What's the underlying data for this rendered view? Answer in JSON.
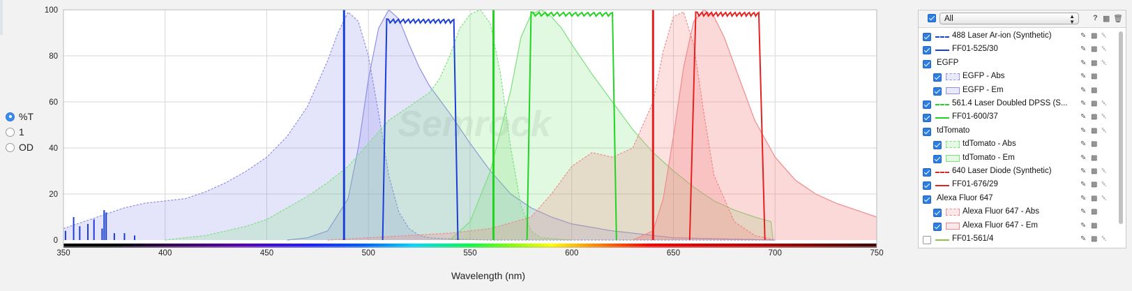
{
  "y_mode": {
    "options": [
      {
        "label": "%T",
        "selected": true
      },
      {
        "label": "1",
        "selected": false
      },
      {
        "label": "OD",
        "selected": false
      }
    ]
  },
  "panel": {
    "filter_select": "All",
    "help_icon": "?",
    "items": [
      {
        "label": "488 Laser Ar-ion (Synthetic)",
        "indent": 0,
        "checked": true,
        "swatch": "dash",
        "color": "#1a3fd6"
      },
      {
        "label": "FF01-525/30",
        "indent": 0,
        "checked": true,
        "swatch": "line",
        "color": "#1a3fd6"
      },
      {
        "label": "EGFP",
        "indent": 0,
        "checked": true,
        "swatch": "none",
        "color": ""
      },
      {
        "label": "EGFP - Abs",
        "indent": 1,
        "checked": true,
        "swatch": "box-dash",
        "color": "#8f8fe6"
      },
      {
        "label": "EGFP - Em",
        "indent": 1,
        "checked": true,
        "swatch": "box",
        "color": "#8f8fe6"
      },
      {
        "label": "561.4 Laser Doubled DPSS (S...",
        "indent": 0,
        "checked": true,
        "swatch": "dash",
        "color": "#22d322"
      },
      {
        "label": "FF01-600/37",
        "indent": 0,
        "checked": true,
        "swatch": "line",
        "color": "#22d322"
      },
      {
        "label": "tdTomato",
        "indent": 0,
        "checked": true,
        "swatch": "none",
        "color": ""
      },
      {
        "label": "tdTomato - Abs",
        "indent": 1,
        "checked": true,
        "swatch": "box-dash",
        "color": "#7ee07e"
      },
      {
        "label": "tdTomato - Em",
        "indent": 1,
        "checked": true,
        "swatch": "box",
        "color": "#7ee07e"
      },
      {
        "label": "640 Laser Diode (Synthetic)",
        "indent": 0,
        "checked": true,
        "swatch": "dash",
        "color": "#e62020"
      },
      {
        "label": "FF01-676/29",
        "indent": 0,
        "checked": true,
        "swatch": "line",
        "color": "#e62020"
      },
      {
        "label": "Alexa Fluor 647",
        "indent": 0,
        "checked": true,
        "swatch": "none",
        "color": ""
      },
      {
        "label": "Alexa Fluor 647 - Abs",
        "indent": 1,
        "checked": true,
        "swatch": "box-dash",
        "color": "#f08a8a"
      },
      {
        "label": "Alexa Fluor 647 - Em",
        "indent": 1,
        "checked": true,
        "swatch": "box",
        "color": "#f08a8a"
      },
      {
        "label": "FF01-561/4",
        "indent": 0,
        "checked": false,
        "swatch": "line",
        "color": "#8bc34a"
      }
    ]
  },
  "chart_data": {
    "type": "line",
    "xlabel": "Wavelength (nm)",
    "ylabel": "",
    "xlim": [
      350,
      750
    ],
    "ylim": [
      0,
      100
    ],
    "xticks": [
      350,
      400,
      450,
      500,
      550,
      600,
      650,
      700,
      750
    ],
    "yticks": [
      0,
      20,
      40,
      60,
      80,
      100
    ],
    "grid": true,
    "watermark": "Semrock",
    "series": [
      {
        "name": "EGFP - Abs",
        "kind": "dye",
        "style": "dash",
        "color": "#8f8fe6",
        "fill": "rgba(130,130,235,0.22)",
        "x": [
          350,
          360,
          370,
          380,
          390,
          400,
          410,
          420,
          430,
          440,
          450,
          460,
          470,
          480,
          485,
          490,
          495,
          500,
          505,
          510,
          515,
          520,
          525,
          530,
          540,
          550,
          560,
          600,
          700
        ],
        "y": [
          5,
          8,
          11,
          14,
          16,
          17,
          18,
          21,
          25,
          30,
          36,
          45,
          58,
          78,
          90,
          99,
          95,
          80,
          55,
          28,
          12,
          5,
          2,
          1,
          0.5,
          0.2,
          0,
          0,
          0
        ]
      },
      {
        "name": "EGFP - Em",
        "kind": "dye",
        "style": "solid",
        "color": "#8f8fe6",
        "fill": "rgba(130,130,235,0.22)",
        "x": [
          460,
          470,
          480,
          490,
          495,
          500,
          505,
          510,
          515,
          520,
          525,
          530,
          540,
          550,
          560,
          570,
          580,
          590,
          600,
          620,
          650,
          700
        ],
        "y": [
          0,
          1,
          4,
          18,
          40,
          70,
          92,
          100,
          96,
          85,
          75,
          67,
          55,
          42,
          30,
          20,
          14,
          10,
          7,
          4,
          1,
          0
        ]
      },
      {
        "name": "tdTomato - Abs",
        "kind": "dye",
        "style": "dash",
        "color": "#7ee07e",
        "fill": "rgba(120,225,120,0.22)",
        "x": [
          400,
          420,
          440,
          450,
          460,
          470,
          480,
          490,
          500,
          510,
          520,
          530,
          535,
          540,
          545,
          550,
          555,
          560,
          565,
          570,
          575,
          580,
          585,
          600
        ],
        "y": [
          0,
          2,
          6,
          9,
          14,
          19,
          25,
          32,
          42,
          52,
          58,
          64,
          70,
          80,
          92,
          98,
          100,
          94,
          72,
          40,
          15,
          4,
          1,
          0
        ]
      },
      {
        "name": "tdTomato - Em",
        "kind": "dye",
        "style": "solid",
        "color": "#7ee07e",
        "fill": "rgba(120,225,120,0.22)",
        "x": [
          540,
          550,
          560,
          570,
          575,
          580,
          585,
          590,
          595,
          600,
          610,
          620,
          630,
          640,
          650,
          660,
          670,
          680,
          690,
          698,
          699
        ],
        "y": [
          0,
          8,
          30,
          65,
          88,
          98,
          100,
          97,
          92,
          85,
          72,
          60,
          48,
          38,
          30,
          23,
          17,
          13,
          10,
          8,
          0
        ]
      },
      {
        "name": "Alexa Fluor 647 - Abs",
        "kind": "dye",
        "style": "dash",
        "color": "#f08a8a",
        "fill": "rgba(245,120,120,0.22)",
        "x": [
          480,
          500,
          520,
          540,
          560,
          580,
          590,
          600,
          610,
          620,
          630,
          640,
          645,
          650,
          655,
          660,
          665,
          670,
          680,
          690,
          700
        ],
        "y": [
          0,
          1,
          2,
          3,
          5,
          10,
          20,
          32,
          38,
          36,
          40,
          60,
          82,
          97,
          99,
          85,
          55,
          28,
          8,
          2,
          0
        ]
      },
      {
        "name": "Alexa Fluor 647 - Em",
        "kind": "dye",
        "style": "solid",
        "color": "#f08a8a",
        "fill": "rgba(245,120,120,0.28)",
        "x": [
          630,
          640,
          645,
          650,
          655,
          660,
          665,
          670,
          675,
          680,
          690,
          700,
          710,
          720,
          730,
          740,
          750
        ],
        "y": [
          0,
          4,
          18,
          45,
          75,
          95,
          100,
          97,
          88,
          76,
          52,
          36,
          26,
          20,
          16,
          13,
          10
        ]
      },
      {
        "name": "488 Laser Ar-ion (Synthetic)",
        "kind": "laser",
        "color": "#1a3fd6",
        "x": [
          487.5,
          488.5
        ],
        "y": [
          100,
          100
        ]
      },
      {
        "name": "561.4 Laser Doubled DPSS (Synthetic)",
        "kind": "laser",
        "color": "#22d322",
        "x": [
          561,
          562
        ],
        "y": [
          100,
          100
        ]
      },
      {
        "name": "640 Laser Diode (Synthetic)",
        "kind": "laser",
        "color": "#e62020",
        "x": [
          639.5,
          640.5
        ],
        "y": [
          100,
          100
        ]
      },
      {
        "name": "FF01-525/30",
        "kind": "filter",
        "color": "#1a3fd6",
        "x": [
          507,
          509,
          542,
          544
        ],
        "y": [
          0,
          96,
          96,
          0
        ]
      },
      {
        "name": "FF01-600/37",
        "kind": "filter",
        "color": "#22d322",
        "x": [
          578,
          580,
          620,
          622
        ],
        "y": [
          0,
          99,
          99,
          0
        ]
      },
      {
        "name": "FF01-676/29",
        "kind": "filter",
        "color": "#e62020",
        "x": [
          658,
          661,
          692,
          695
        ],
        "y": [
          0,
          99,
          99,
          0
        ]
      },
      {
        "name": "488 Laser Ar-ion lines",
        "kind": "spikes",
        "color": "#1a3fd6",
        "x": [
          351,
          355,
          358,
          362,
          365,
          369,
          370,
          371,
          375,
          380,
          385
        ],
        "y": [
          4,
          10,
          6,
          7,
          9,
          5,
          13,
          12,
          3,
          3,
          2
        ]
      }
    ]
  }
}
